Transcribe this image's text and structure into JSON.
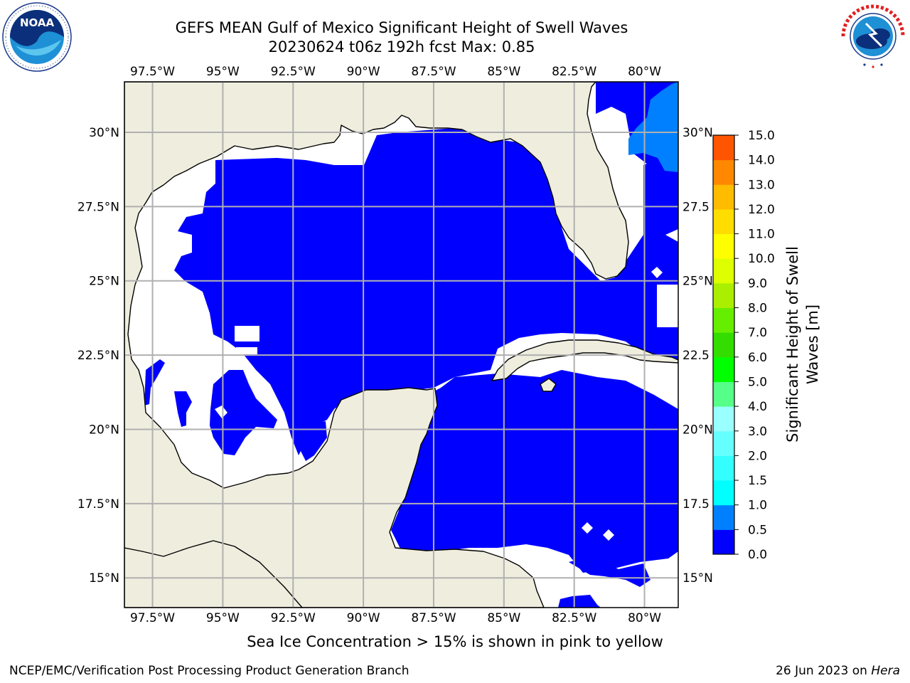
{
  "title_line1": "GEFS MEAN Gulf of Mexico Significant Height of Swell Waves",
  "title_line2": "20230624 t06z 192h fcst   Max: 0.85",
  "footer_note": "Sea Ice Concentration > 15% is shown in pink to yellow",
  "credit": "NCEP/EMC/Verification Post Processing Product Generation Branch",
  "date_prefix": "26 Jun 2023 on ",
  "date_host": "Hera",
  "logos": {
    "left": {
      "icon": "noaa-logo",
      "text": "NOAA",
      "ring_text": "NATIONAL OCEANIC AND ATMOSPHERIC ADMINISTRATION · U.S. DEPARTMENT OF COMMERCE"
    },
    "right": {
      "icon": "nws-logo",
      "ring_text": "NATIONAL WEATHER SERVICE"
    }
  },
  "map": {
    "lon_range": [
      -98.5,
      -78.8
    ],
    "lat_range": [
      14.0,
      31.7
    ],
    "lon_ticks": [
      -97.5,
      -95,
      -92.5,
      -90,
      -87.5,
      -85,
      -82.5,
      -80
    ],
    "lon_labels": [
      "97.5°W",
      "95°W",
      "92.5°W",
      "90°W",
      "87.5°W",
      "85°W",
      "82.5°W",
      "80°W"
    ],
    "lat_ticks": [
      15,
      17.5,
      20,
      22.5,
      25,
      27.5,
      30
    ],
    "lat_labels": [
      "15°N",
      "17.5°N",
      "20°N",
      "22.5°N",
      "25°N",
      "27.5°N",
      "30°N"
    ],
    "right_lat_labels": [
      "15°N",
      "17.5",
      "20°N",
      "22.5",
      "25°N",
      "27.5",
      "30°N"
    ],
    "colors": {
      "land": "#efedde",
      "water_none": "#ffffff",
      "swell_low": "#0000ff",
      "swell_mid": "#0080ff",
      "grid": "#b0b0b0",
      "coast": "#000000"
    }
  },
  "colorbar": {
    "label": "Significant Height of Swell Waves [m]",
    "tick_labels": [
      "0.0",
      "0.5",
      "1.0",
      "1.5",
      "2.0",
      "3.0",
      "4.0",
      "5.0",
      "6.0",
      "7.0",
      "8.0",
      "9.0",
      "10.0",
      "11.0",
      "12.0",
      "13.0",
      "14.0",
      "15.0"
    ],
    "colors": [
      "#0000ff",
      "#0080ff",
      "#00ffff",
      "#33ffff",
      "#66ffff",
      "#99ffff",
      "#55ff88",
      "#00ff00",
      "#33dd00",
      "#66ee00",
      "#aaee00",
      "#ddff00",
      "#ffff00",
      "#ffdd00",
      "#ffbb00",
      "#ff8800",
      "#ff5500",
      "#ff2200"
    ]
  }
}
